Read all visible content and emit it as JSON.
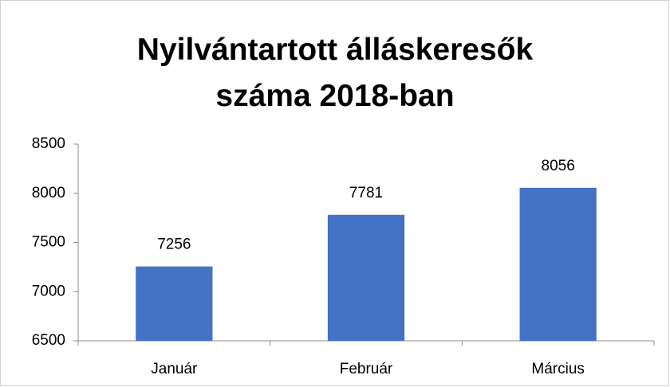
{
  "chart_data": {
    "type": "bar",
    "title": "Nyilvántartott álláskeresők száma 2018-ban",
    "categories": [
      "Január",
      "Február",
      "Március"
    ],
    "values": [
      7256,
      7781,
      8056
    ],
    "color": "#4472c4",
    "ylim": [
      6500,
      8500
    ],
    "yticks": [
      6500,
      7000,
      7500,
      8000,
      8500
    ],
    "grid": false,
    "data_labels": true
  }
}
